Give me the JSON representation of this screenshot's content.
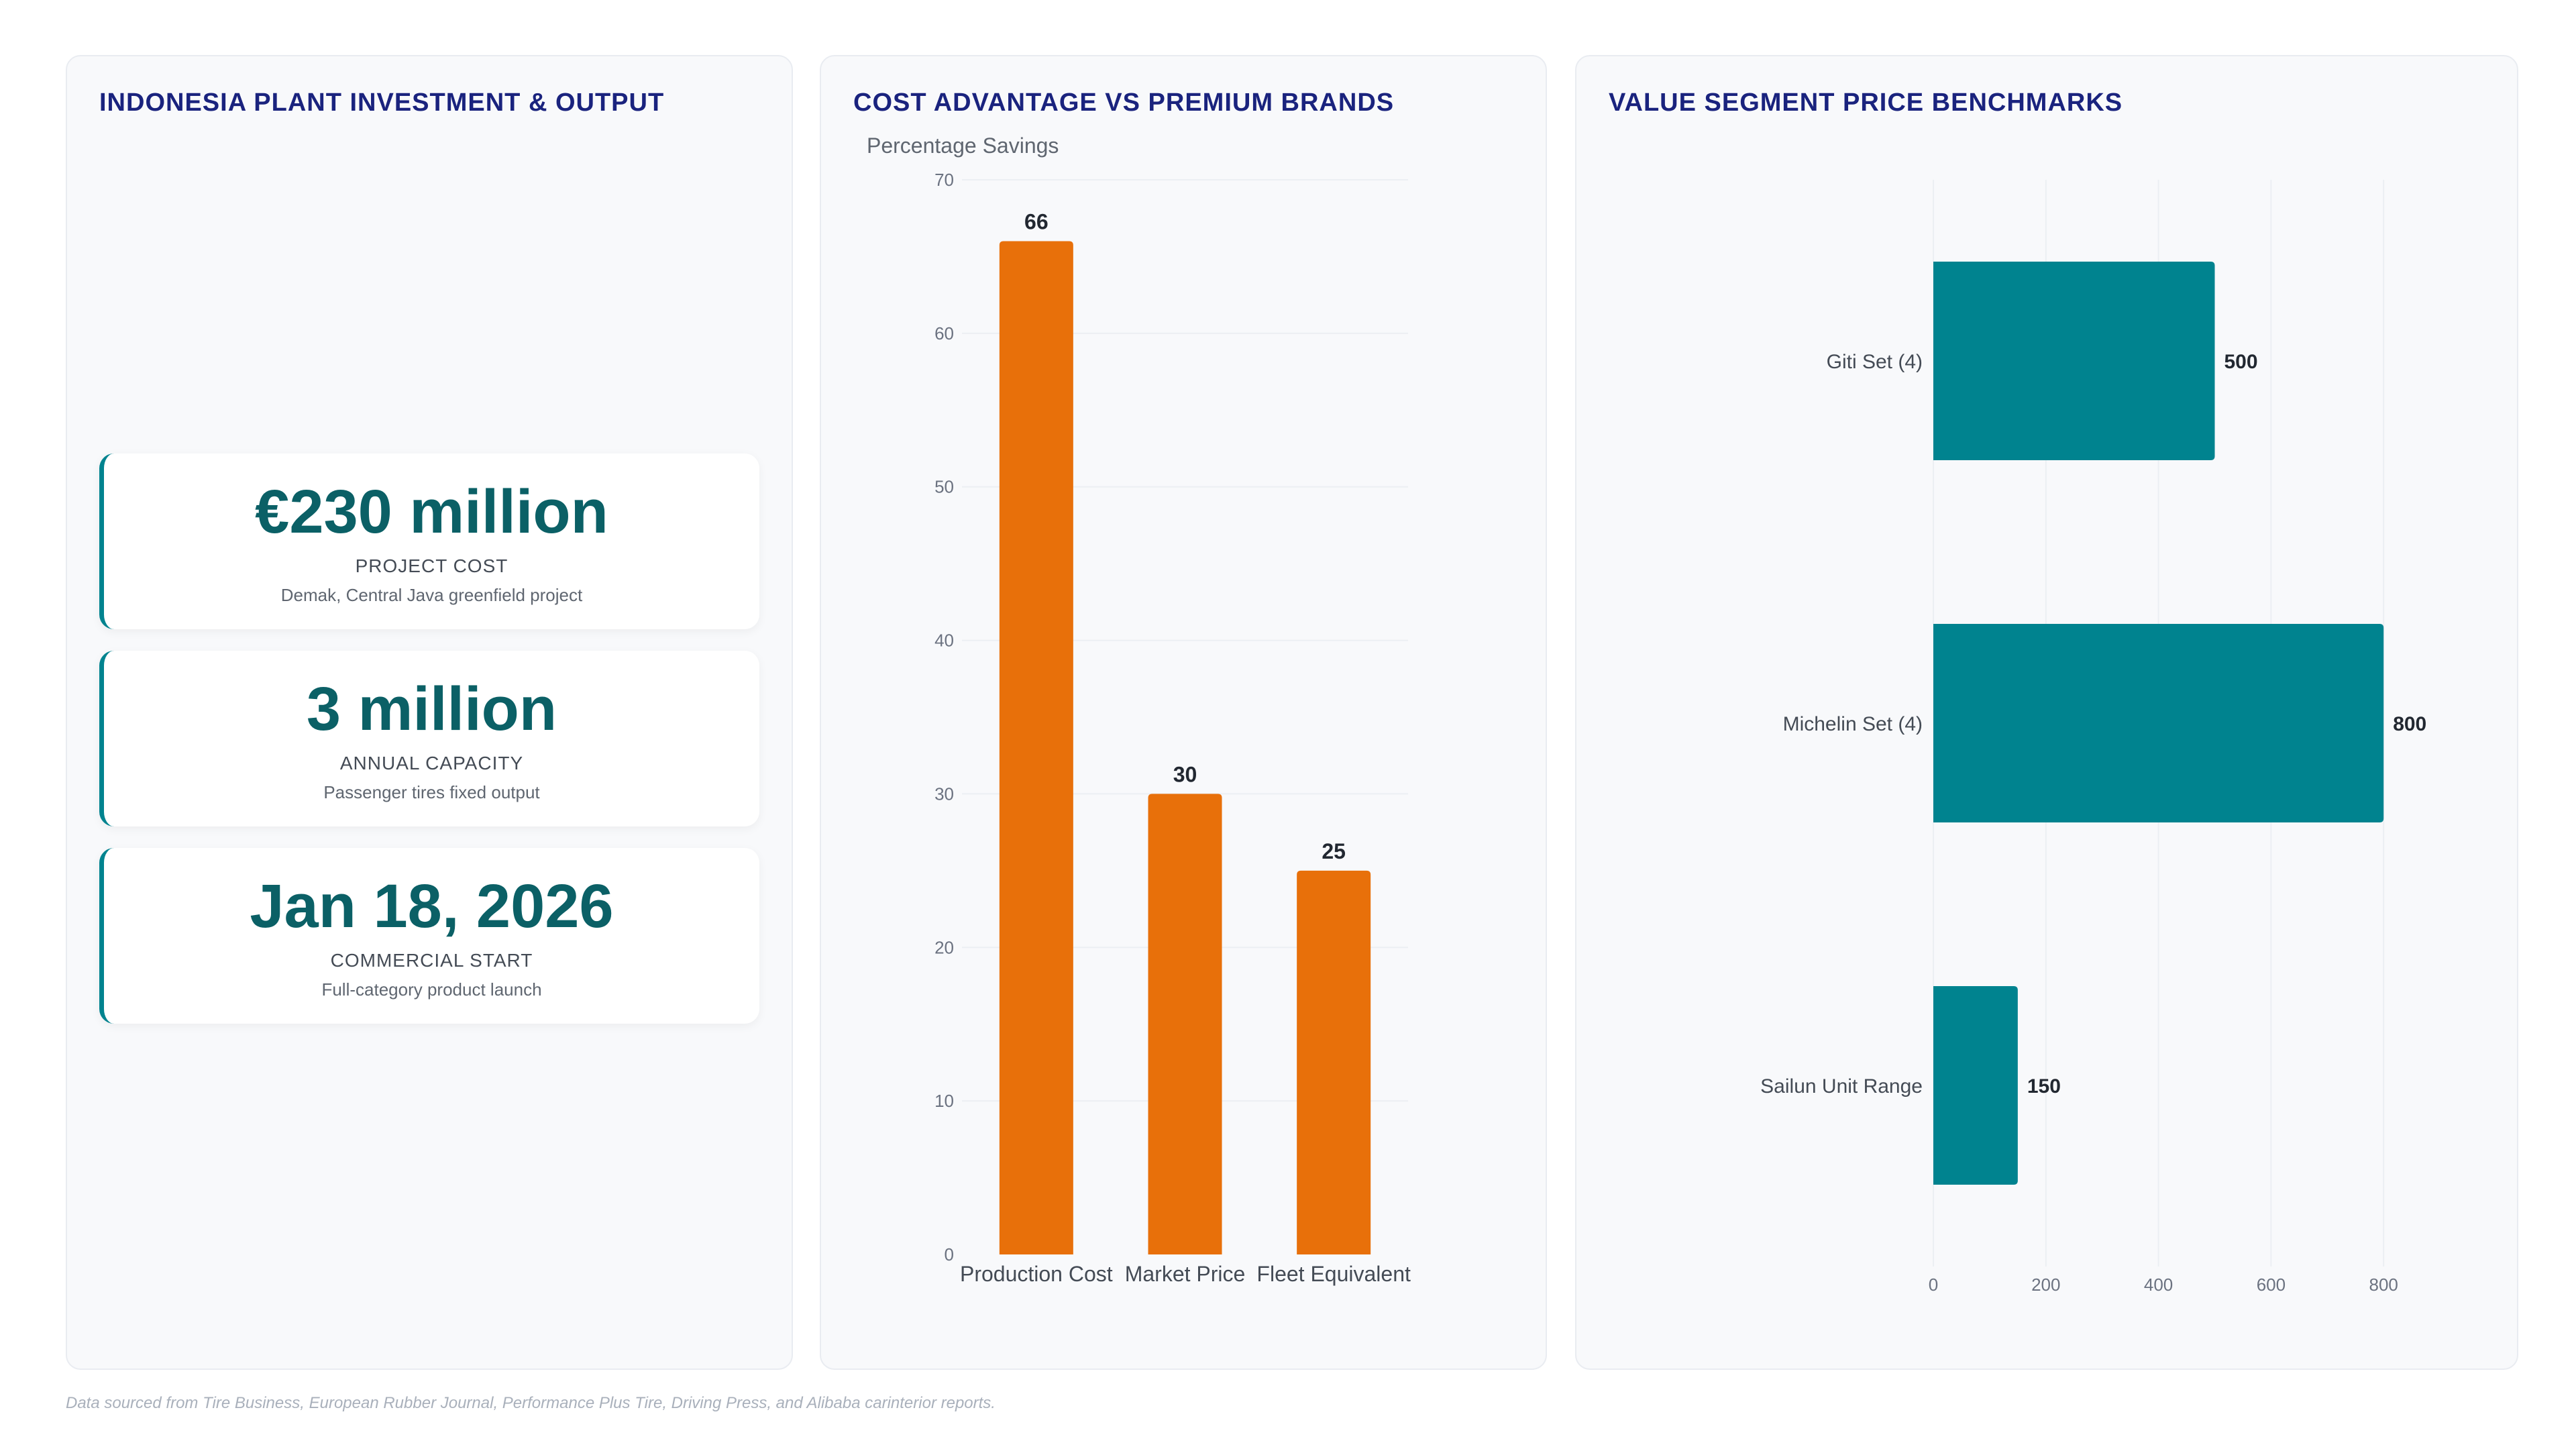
{
  "left_panel": {
    "title": "INDONESIA PLANT INVESTMENT & OUTPUT",
    "kpis": [
      {
        "value": "€230 million",
        "label": "PROJECT COST",
        "desc": "Demak, Central Java greenfield project"
      },
      {
        "value": "3 million",
        "label": "ANNUAL CAPACITY",
        "desc": "Passenger tires fixed output"
      },
      {
        "value": "Jan 18, 2026",
        "label": "COMMERCIAL START",
        "desc": "Full-category product launch"
      }
    ]
  },
  "chart_data": [
    {
      "type": "bar",
      "orientation": "vertical",
      "title": "COST ADVANTAGE VS PREMIUM BRANDS",
      "ylabel": "Percentage Savings",
      "categories": [
        "Production Cost",
        "Market Price",
        "Fleet Equivalent"
      ],
      "values": [
        66,
        30,
        25
      ],
      "ylim": [
        0,
        70
      ],
      "yticks": [
        0,
        10,
        20,
        30,
        40,
        50,
        60,
        70
      ],
      "color": "#e8700a",
      "grid": true,
      "data_labels": true
    },
    {
      "type": "bar",
      "orientation": "horizontal",
      "title": "VALUE SEGMENT PRICE BENCHMARKS",
      "categories": [
        "Giti Set (4)",
        "Michelin Set (4)",
        "Sailun Unit Range"
      ],
      "values": [
        500,
        800,
        150
      ],
      "xlim": [
        0,
        850
      ],
      "xticks": [
        0,
        200,
        400,
        600,
        800
      ],
      "color": "#00838f",
      "grid": true,
      "data_labels": true
    }
  ],
  "footnote": "Data sourced from Tire Business, European Rubber Journal, Performance Plus Tire, Driving Press, and Alibaba carinterior reports."
}
